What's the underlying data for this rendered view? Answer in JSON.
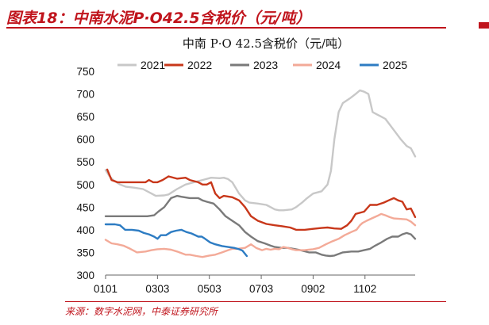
{
  "figure": {
    "title": "图表18：中南水泥P·O42.5含税价（元/吨）",
    "source": "来源：数字水泥网，中泰证券研究所",
    "accent_color": "#c0141c"
  },
  "chart_data": {
    "type": "line",
    "title": "中南 P·O 42.5含税价（元/吨）",
    "xlabel": "",
    "ylabel": "",
    "ylim": [
      300,
      750
    ],
    "yticks": [
      300,
      350,
      400,
      450,
      500,
      550,
      600,
      650,
      700,
      750
    ],
    "x_ticks": [
      "0101",
      "0303",
      "0503",
      "0703",
      "0902",
      "1102"
    ],
    "x_tick_days": [
      1,
      62,
      123,
      184,
      245,
      306
    ],
    "x_day_range": [
      1,
      365
    ],
    "grid": false,
    "legend_position": "top",
    "series": [
      {
        "name": "2021",
        "color": "#c8c8c8",
        "points": [
          [
            1,
            532
          ],
          [
            5,
            520
          ],
          [
            10,
            510
          ],
          [
            18,
            500
          ],
          [
            25,
            495
          ],
          [
            35,
            493
          ],
          [
            45,
            490
          ],
          [
            55,
            480
          ],
          [
            60,
            475
          ],
          [
            70,
            476
          ],
          [
            75,
            478
          ],
          [
            85,
            490
          ],
          [
            95,
            500
          ],
          [
            105,
            505
          ],
          [
            115,
            510
          ],
          [
            125,
            515
          ],
          [
            135,
            514
          ],
          [
            140,
            515
          ],
          [
            145,
            512
          ],
          [
            150,
            505
          ],
          [
            158,
            480
          ],
          [
            165,
            465
          ],
          [
            170,
            460
          ],
          [
            180,
            458
          ],
          [
            190,
            455
          ],
          [
            195,
            450
          ],
          [
            200,
            445
          ],
          [
            205,
            443
          ],
          [
            210,
            443
          ],
          [
            220,
            445
          ],
          [
            225,
            450
          ],
          [
            232,
            460
          ],
          [
            238,
            470
          ],
          [
            245,
            480
          ],
          [
            255,
            485
          ],
          [
            262,
            500
          ],
          [
            266,
            530
          ],
          [
            270,
            600
          ],
          [
            275,
            660
          ],
          [
            280,
            680
          ],
          [
            288,
            690
          ],
          [
            295,
            700
          ],
          [
            300,
            708
          ],
          [
            305,
            705
          ],
          [
            310,
            700
          ],
          [
            315,
            660
          ],
          [
            320,
            655
          ],
          [
            325,
            650
          ],
          [
            330,
            645
          ],
          [
            340,
            620
          ],
          [
            348,
            600
          ],
          [
            355,
            585
          ],
          [
            360,
            580
          ],
          [
            365,
            562
          ]
        ]
      },
      {
        "name": "2022",
        "color": "#c8371a",
        "points": [
          [
            3,
            533
          ],
          [
            8,
            510
          ],
          [
            15,
            505
          ],
          [
            25,
            505
          ],
          [
            35,
            505
          ],
          [
            45,
            505
          ],
          [
            48,
            505
          ],
          [
            52,
            510
          ],
          [
            57,
            505
          ],
          [
            62,
            505
          ],
          [
            68,
            510
          ],
          [
            75,
            518
          ],
          [
            85,
            513
          ],
          [
            95,
            515
          ],
          [
            100,
            510
          ],
          [
            110,
            505
          ],
          [
            115,
            500
          ],
          [
            120,
            500
          ],
          [
            125,
            505
          ],
          [
            130,
            480
          ],
          [
            135,
            470
          ],
          [
            140,
            475
          ],
          [
            150,
            472
          ],
          [
            158,
            465
          ],
          [
            165,
            450
          ],
          [
            172,
            430
          ],
          [
            180,
            420
          ],
          [
            190,
            413
          ],
          [
            200,
            410
          ],
          [
            208,
            408
          ],
          [
            218,
            405
          ],
          [
            225,
            400
          ],
          [
            235,
            400
          ],
          [
            245,
            402
          ],
          [
            255,
            404
          ],
          [
            262,
            405
          ],
          [
            270,
            403
          ],
          [
            278,
            402
          ],
          [
            285,
            410
          ],
          [
            290,
            420
          ],
          [
            295,
            435
          ],
          [
            305,
            440
          ],
          [
            312,
            455
          ],
          [
            320,
            455
          ],
          [
            328,
            460
          ],
          [
            335,
            466
          ],
          [
            340,
            470
          ],
          [
            345,
            465
          ],
          [
            350,
            462
          ],
          [
            355,
            445
          ],
          [
            360,
            447
          ],
          [
            365,
            428
          ]
        ]
      },
      {
        "name": "2023",
        "color": "#7a7a7a",
        "points": [
          [
            1,
            430
          ],
          [
            10,
            430
          ],
          [
            20,
            430
          ],
          [
            30,
            430
          ],
          [
            40,
            430
          ],
          [
            50,
            430
          ],
          [
            58,
            432
          ],
          [
            63,
            440
          ],
          [
            70,
            450
          ],
          [
            78,
            470
          ],
          [
            85,
            475
          ],
          [
            90,
            473
          ],
          [
            100,
            470
          ],
          [
            110,
            470
          ],
          [
            115,
            465
          ],
          [
            120,
            462
          ],
          [
            128,
            458
          ],
          [
            135,
            445
          ],
          [
            142,
            430
          ],
          [
            150,
            420
          ],
          [
            158,
            410
          ],
          [
            165,
            395
          ],
          [
            172,
            385
          ],
          [
            180,
            375
          ],
          [
            188,
            370
          ],
          [
            195,
            365
          ],
          [
            200,
            362
          ],
          [
            208,
            360
          ],
          [
            215,
            360
          ],
          [
            222,
            358
          ],
          [
            230,
            355
          ],
          [
            240,
            350
          ],
          [
            248,
            350
          ],
          [
            255,
            345
          ],
          [
            260,
            343
          ],
          [
            265,
            342
          ],
          [
            270,
            343
          ],
          [
            280,
            350
          ],
          [
            290,
            352
          ],
          [
            298,
            352
          ],
          [
            305,
            355
          ],
          [
            312,
            358
          ],
          [
            318,
            365
          ],
          [
            325,
            372
          ],
          [
            332,
            380
          ],
          [
            338,
            385
          ],
          [
            345,
            385
          ],
          [
            350,
            390
          ],
          [
            355,
            393
          ],
          [
            360,
            390
          ],
          [
            365,
            380
          ]
        ]
      },
      {
        "name": "2024",
        "color": "#f3aa98",
        "points": [
          [
            1,
            378
          ],
          [
            8,
            370
          ],
          [
            15,
            368
          ],
          [
            22,
            365
          ],
          [
            30,
            358
          ],
          [
            38,
            350
          ],
          [
            48,
            352
          ],
          [
            55,
            355
          ],
          [
            62,
            357
          ],
          [
            70,
            358
          ],
          [
            78,
            356
          ],
          [
            85,
            352
          ],
          [
            95,
            345
          ],
          [
            100,
            345
          ],
          [
            108,
            342
          ],
          [
            115,
            340
          ],
          [
            123,
            343
          ],
          [
            130,
            345
          ],
          [
            138,
            350
          ],
          [
            145,
            355
          ],
          [
            150,
            358
          ],
          [
            155,
            358
          ],
          [
            165,
            360
          ],
          [
            172,
            368
          ],
          [
            178,
            360
          ],
          [
            185,
            355
          ],
          [
            190,
            358
          ],
          [
            195,
            356
          ],
          [
            200,
            358
          ],
          [
            205,
            357
          ],
          [
            210,
            362
          ],
          [
            215,
            360
          ],
          [
            220,
            357
          ],
          [
            225,
            355
          ],
          [
            230,
            355
          ],
          [
            235,
            355
          ],
          [
            240,
            356
          ],
          [
            245,
            357
          ],
          [
            252,
            360
          ],
          [
            260,
            368
          ],
          [
            268,
            375
          ],
          [
            275,
            380
          ],
          [
            282,
            388
          ],
          [
            290,
            395
          ],
          [
            296,
            400
          ],
          [
            300,
            410
          ],
          [
            303,
            415
          ],
          [
            308,
            420
          ],
          [
            315,
            426
          ],
          [
            322,
            432
          ],
          [
            325,
            435
          ],
          [
            330,
            432
          ],
          [
            335,
            428
          ],
          [
            340,
            425
          ],
          [
            348,
            424
          ],
          [
            355,
            423
          ],
          [
            360,
            418
          ],
          [
            365,
            410
          ]
        ]
      },
      {
        "name": "2025",
        "color": "#2d7cc3",
        "points": [
          [
            1,
            412
          ],
          [
            5,
            412
          ],
          [
            12,
            412
          ],
          [
            18,
            410
          ],
          [
            24,
            400
          ],
          [
            32,
            400
          ],
          [
            40,
            398
          ],
          [
            46,
            393
          ],
          [
            52,
            390
          ],
          [
            58,
            385
          ],
          [
            62,
            380
          ],
          [
            66,
            388
          ],
          [
            72,
            388
          ],
          [
            78,
            395
          ],
          [
            84,
            398
          ],
          [
            90,
            400
          ],
          [
            96,
            395
          ],
          [
            102,
            392
          ],
          [
            110,
            385
          ],
          [
            114,
            385
          ],
          [
            118,
            380
          ],
          [
            124,
            372
          ],
          [
            130,
            368
          ],
          [
            138,
            364
          ],
          [
            145,
            362
          ],
          [
            152,
            360
          ],
          [
            158,
            357
          ],
          [
            162,
            354
          ],
          [
            167,
            342
          ]
        ]
      }
    ]
  }
}
